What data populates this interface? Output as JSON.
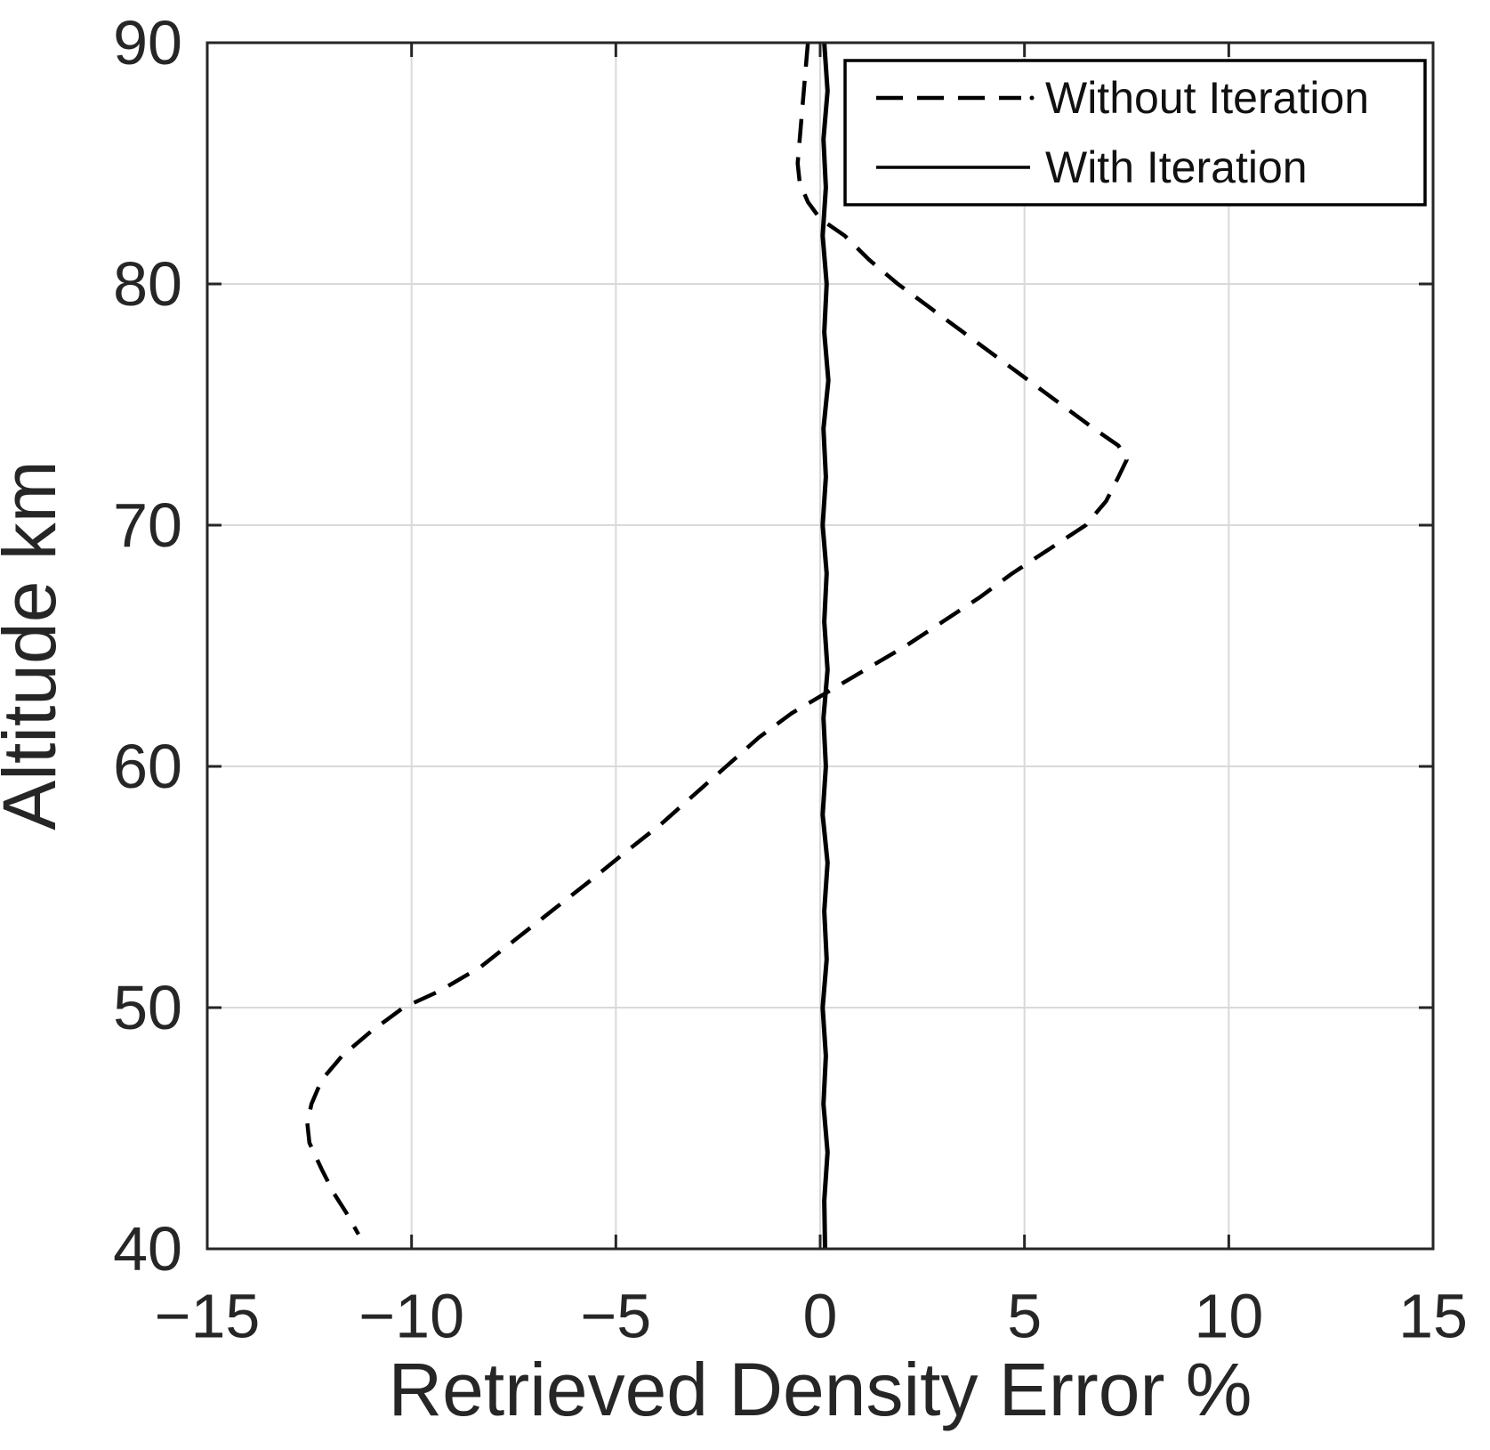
{
  "figure": {
    "background": "#ffffff",
    "axis_color": "#262626",
    "grid_color": "#d9d9d9",
    "line_color": "#000000"
  },
  "legend": {
    "position": "top-right",
    "items": [
      {
        "label": "Without Iteration",
        "style": "dashed"
      },
      {
        "label": "With Iteration",
        "style": "solid"
      }
    ]
  },
  "chart_data": {
    "type": "line",
    "title": "",
    "xlabel": "Retrieved Density Error %",
    "ylabel": "Altitude km",
    "xlim": [
      -15,
      15
    ],
    "ylim": [
      40,
      90
    ],
    "xticks": [
      -15,
      -10,
      -5,
      0,
      5,
      10,
      15
    ],
    "xtick_labels": [
      "−15",
      "−10",
      "−5",
      "0",
      "5",
      "10",
      "15"
    ],
    "yticks": [
      40,
      50,
      60,
      70,
      80,
      90
    ],
    "ytick_labels": [
      "40",
      "50",
      "60",
      "70",
      "80",
      "90"
    ],
    "grid": true,
    "legend_position": "top-right",
    "point_format": "[retrieved_density_error_percent, altitude_km]",
    "series": [
      {
        "name": "Without Iteration",
        "style": "dashed",
        "color": "#000000",
        "points": [
          [
            -0.3,
            90
          ],
          [
            -0.35,
            89
          ],
          [
            -0.4,
            88
          ],
          [
            -0.45,
            87
          ],
          [
            -0.5,
            86
          ],
          [
            -0.55,
            85
          ],
          [
            -0.5,
            84.2
          ],
          [
            -0.3,
            83.4
          ],
          [
            0.0,
            82.7
          ],
          [
            0.6,
            82
          ],
          [
            1.2,
            81
          ],
          [
            1.9,
            80
          ],
          [
            2.7,
            79
          ],
          [
            3.5,
            78
          ],
          [
            4.3,
            77
          ],
          [
            5.1,
            76
          ],
          [
            5.9,
            75
          ],
          [
            6.7,
            74
          ],
          [
            7.3,
            73.3
          ],
          [
            7.5,
            72.7
          ],
          [
            7.3,
            72
          ],
          [
            7.0,
            71
          ],
          [
            6.5,
            70
          ],
          [
            5.6,
            69
          ],
          [
            4.7,
            68
          ],
          [
            3.9,
            67
          ],
          [
            3.0,
            66
          ],
          [
            2.1,
            65
          ],
          [
            1.1,
            64
          ],
          [
            0.1,
            63
          ],
          [
            -0.7,
            62.2
          ],
          [
            -1.5,
            61.2
          ],
          [
            -2.3,
            60
          ],
          [
            -3.1,
            58.8
          ],
          [
            -3.9,
            57.6
          ],
          [
            -4.8,
            56.4
          ],
          [
            -5.6,
            55.3
          ],
          [
            -6.5,
            54.1
          ],
          [
            -7.4,
            52.9
          ],
          [
            -8.3,
            51.7
          ],
          [
            -9.3,
            50.7
          ],
          [
            -10.2,
            50
          ],
          [
            -11.0,
            49
          ],
          [
            -11.7,
            48
          ],
          [
            -12.2,
            47
          ],
          [
            -12.45,
            46
          ],
          [
            -12.55,
            45.2
          ],
          [
            -12.5,
            44.4
          ],
          [
            -12.2,
            43.3
          ],
          [
            -11.9,
            42.3
          ],
          [
            -11.6,
            41.5
          ],
          [
            -11.3,
            40.6
          ]
        ]
      },
      {
        "name": "With Iteration",
        "style": "solid",
        "color": "#000000",
        "points": [
          [
            0.1,
            90
          ],
          [
            0.18,
            88
          ],
          [
            0.08,
            86
          ],
          [
            0.14,
            84
          ],
          [
            0.06,
            82
          ],
          [
            0.16,
            80
          ],
          [
            0.1,
            78
          ],
          [
            0.2,
            76
          ],
          [
            0.08,
            74
          ],
          [
            0.14,
            72
          ],
          [
            0.06,
            70
          ],
          [
            0.16,
            68
          ],
          [
            0.1,
            66
          ],
          [
            0.18,
            64
          ],
          [
            0.08,
            62
          ],
          [
            0.14,
            60
          ],
          [
            0.06,
            58
          ],
          [
            0.18,
            56
          ],
          [
            0.1,
            54
          ],
          [
            0.16,
            52
          ],
          [
            0.06,
            50
          ],
          [
            0.14,
            48
          ],
          [
            0.08,
            46
          ],
          [
            0.18,
            44
          ],
          [
            0.1,
            42
          ],
          [
            0.12,
            40
          ]
        ]
      }
    ]
  }
}
